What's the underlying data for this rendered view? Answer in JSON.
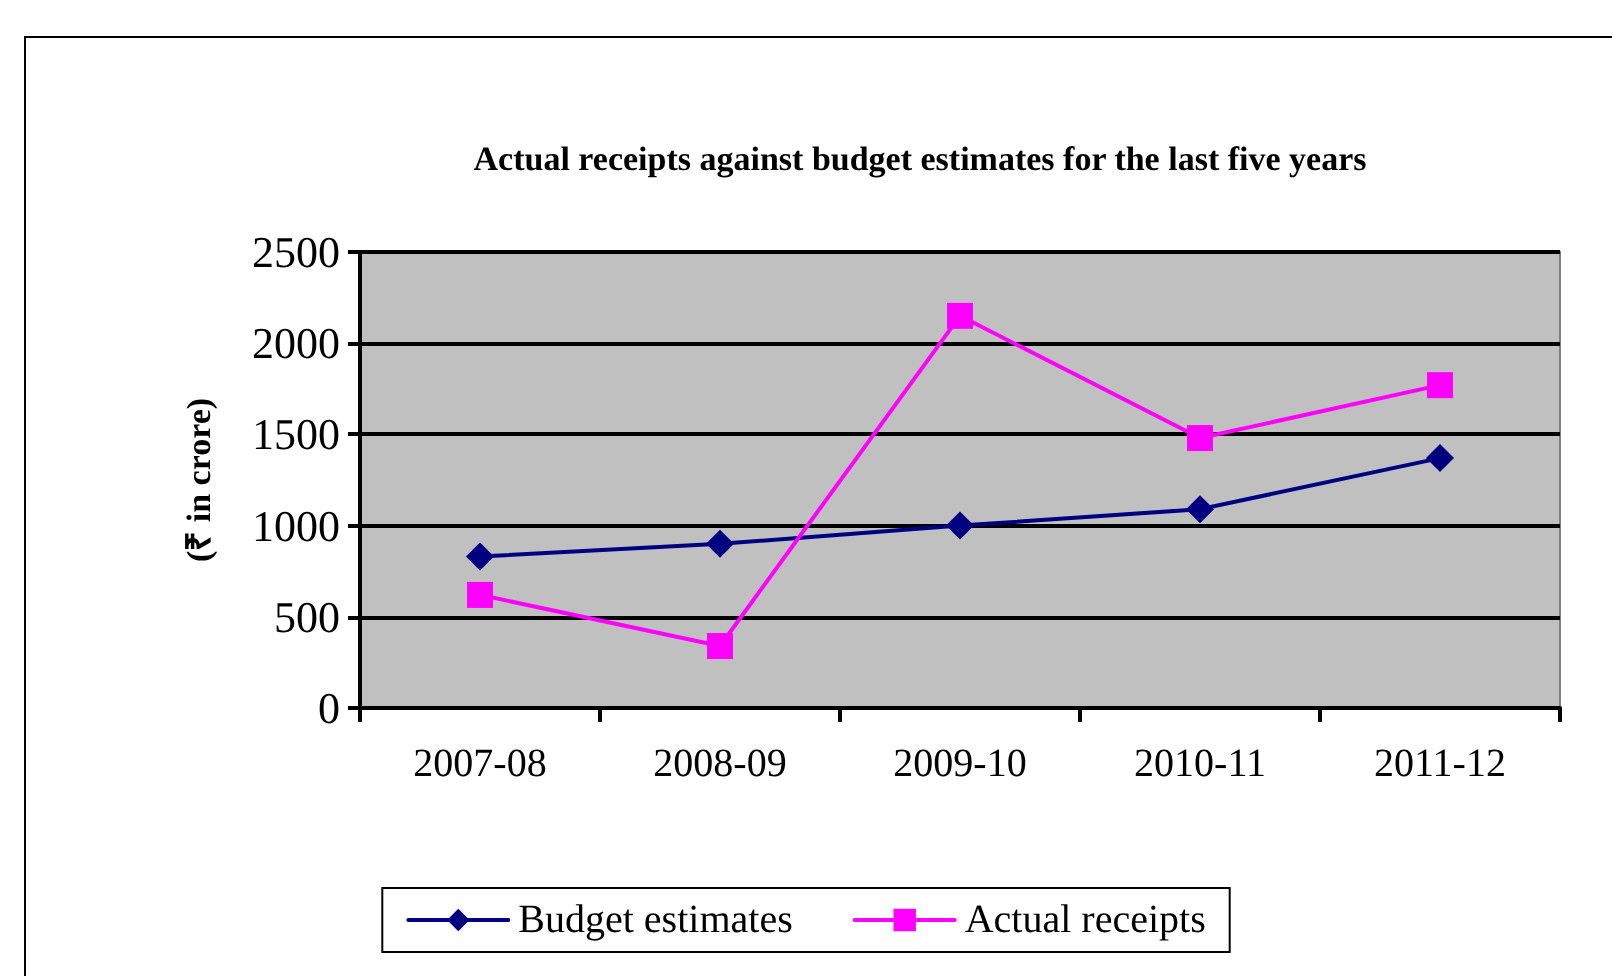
{
  "chart_data": {
    "type": "line",
    "title": "Actual receipts against budget estimates for the last five years",
    "ylabel": "(₹ in crore)",
    "categories": [
      "2007-08",
      "2008-09",
      "2009-10",
      "2010-11",
      "2011-12"
    ],
    "series": [
      {
        "name": "Budget estimates",
        "color": "#000080",
        "values": [
          830,
          900,
          1000,
          1090,
          1370
        ],
        "marker": "diamond"
      },
      {
        "name": "Actual receipts",
        "color": "#ff00ff",
        "values": [
          620,
          340,
          2150,
          1480,
          1770
        ],
        "marker": "square"
      }
    ],
    "ylim": [
      0,
      2500
    ],
    "yticks": [
      0,
      500,
      1000,
      1500,
      2000,
      2500
    ],
    "grid": "y",
    "legend": "bottom",
    "line_style": "solid"
  }
}
